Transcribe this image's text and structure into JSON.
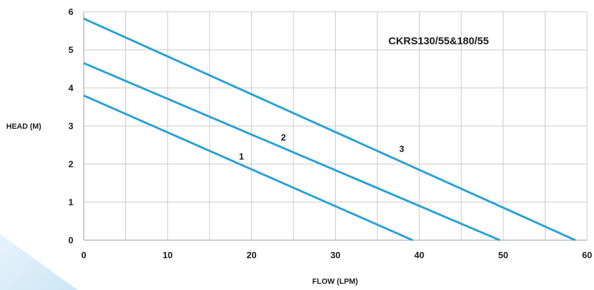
{
  "chart_data": {
    "type": "line",
    "title": "CKRS130/55&180/55",
    "xlabel": "FLOW (LPM)",
    "ylabel": "HEAD (M)",
    "xlim": [
      0,
      60
    ],
    "ylim": [
      0,
      6
    ],
    "xticks": [
      0,
      10,
      20,
      30,
      40,
      50,
      60
    ],
    "yticks": [
      0,
      1,
      2,
      3,
      4,
      5,
      6
    ],
    "x_minor_step": 5,
    "grid": true,
    "colors": {
      "line": "#2a9fd6",
      "grid": "#c8c8c8",
      "axis": "#9a9a9a",
      "decor": "#d4ebf8"
    },
    "series": [
      {
        "label": "1",
        "x": [
          0,
          39.2
        ],
        "y": [
          3.8,
          0
        ],
        "label_at": [
          18.8,
          2.2
        ]
      },
      {
        "label": "2",
        "x": [
          0,
          49.6
        ],
        "y": [
          4.65,
          0
        ],
        "label_at": [
          23.8,
          2.7
        ]
      },
      {
        "label": "3",
        "x": [
          0,
          58.6
        ],
        "y": [
          5.82,
          0
        ],
        "label_at": [
          37.9,
          2.4
        ]
      }
    ]
  }
}
